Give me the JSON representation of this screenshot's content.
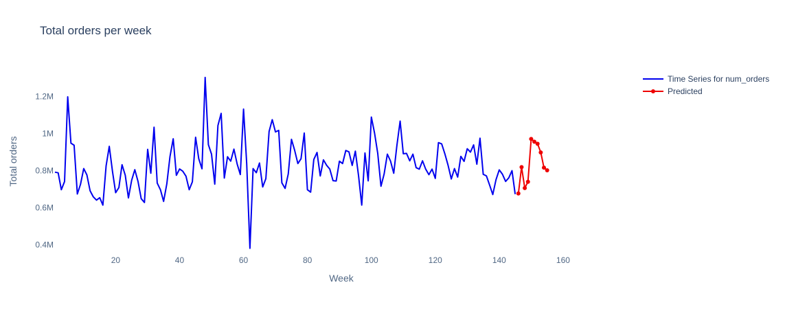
{
  "chart_data": {
    "type": "line",
    "title": "Total orders per week",
    "xlabel": "Week",
    "ylabel": "Total orders",
    "xlim": [
      1,
      180
    ],
    "ylim": [
      350000,
      1350000
    ],
    "xticks": [
      {
        "value": 20,
        "label": "20"
      },
      {
        "value": 40,
        "label": "40"
      },
      {
        "value": 60,
        "label": "60"
      },
      {
        "value": 80,
        "label": "80"
      },
      {
        "value": 100,
        "label": "100"
      },
      {
        "value": 120,
        "label": "120"
      },
      {
        "value": 140,
        "label": "140"
      },
      {
        "value": 160,
        "label": "160"
      }
    ],
    "yticks": [
      {
        "value": 400000,
        "label": "0.4M"
      },
      {
        "value": 600000,
        "label": "0.6M"
      },
      {
        "value": 800000,
        "label": "0.8M"
      },
      {
        "value": 1000000,
        "label": "1M"
      },
      {
        "value": 1200000,
        "label": "1.2M"
      }
    ],
    "grid": false,
    "legend_position": "top-right",
    "series": [
      {
        "name": "Time Series for num_orders",
        "color": "#0000ee",
        "markers": false,
        "x": [
          1,
          2,
          3,
          4,
          5,
          6,
          7,
          8,
          9,
          10,
          11,
          12,
          13,
          14,
          15,
          16,
          17,
          18,
          19,
          20,
          21,
          22,
          23,
          24,
          25,
          26,
          27,
          28,
          29,
          30,
          31,
          32,
          33,
          34,
          35,
          36,
          37,
          38,
          39,
          40,
          41,
          42,
          43,
          44,
          45,
          46,
          47,
          48,
          49,
          50,
          51,
          52,
          53,
          54,
          55,
          56,
          57,
          58,
          59,
          60,
          61,
          62,
          63,
          64,
          65,
          66,
          67,
          68,
          69,
          70,
          71,
          72,
          73,
          74,
          75,
          76,
          77,
          78,
          79,
          80,
          81,
          82,
          83,
          84,
          85,
          86,
          87,
          88,
          89,
          90,
          91,
          92,
          93,
          94,
          95,
          96,
          97,
          98,
          99,
          100,
          101,
          102,
          103,
          104,
          105,
          106,
          107,
          108,
          109,
          110,
          111,
          112,
          113,
          114,
          115,
          116,
          117,
          118,
          119,
          120,
          121,
          122,
          123,
          124,
          125,
          126,
          127,
          128,
          129,
          130,
          131,
          132,
          133,
          134,
          135,
          136,
          137,
          138,
          139,
          140,
          141,
          142,
          143,
          144,
          145
        ],
        "y": [
          792000,
          788000,
          697000,
          741000,
          1198000,
          948000,
          937000,
          674000,
          726000,
          811000,
          777000,
          691000,
          659000,
          641000,
          654000,
          614000,
          826000,
          931000,
          795000,
          681000,
          709000,
          832000,
          775000,
          653000,
          748000,
          805000,
          741000,
          649000,
          628000,
          915000,
          786000,
          1034000,
          733000,
          697000,
          634000,
          729000,
          876000,
          972000,
          775000,
          809000,
          797000,
          770000,
          697000,
          740000,
          980000,
          864000,
          810000,
          1303000,
          940000,
          889000,
          727000,
          1043000,
          1109000,
          760000,
          875000,
          851000,
          916000,
          836000,
          779000,
          1132000,
          838000,
          381000,
          811000,
          789000,
          841000,
          712000,
          757000,
          1011000,
          1075000,
          1009000,
          1017000,
          734000,
          704000,
          782000,
          969000,
          910000,
          838000,
          864000,
          1003000,
          697000,
          684000,
          860000,
          898000,
          771000,
          858000,
          829000,
          808000,
          746000,
          744000,
          851000,
          838000,
          909000,
          901000,
          828000,
          905000,
          771000,
          614000,
          895000,
          745000,
          1089000,
          1002000,
          893000,
          716000,
          782000,
          889000,
          852000,
          786000,
          936000,
          1067000,
          891000,
          893000,
          853000,
          889000,
          816000,
          808000,
          853000,
          808000,
          778000,
          808000,
          758000,
          951000,
          944000,
          891000,
          829000,
          755000,
          811000,
          765000,
          877000,
          850000,
          918000,
          900000,
          939000,
          835000,
          975000,
          780000,
          772000,
          722000,
          671000,
          751000,
          804000,
          781000,
          742000,
          761000,
          800000,
          673000
        ]
      },
      {
        "name": "Predicted",
        "color": "#ee0000",
        "markers": true,
        "x": [
          146,
          147,
          148,
          149,
          150,
          151,
          152,
          153,
          154,
          155
        ],
        "y": [
          677000,
          819000,
          706000,
          740000,
          971000,
          956000,
          945000,
          898000,
          816000,
          802000
        ]
      }
    ]
  }
}
